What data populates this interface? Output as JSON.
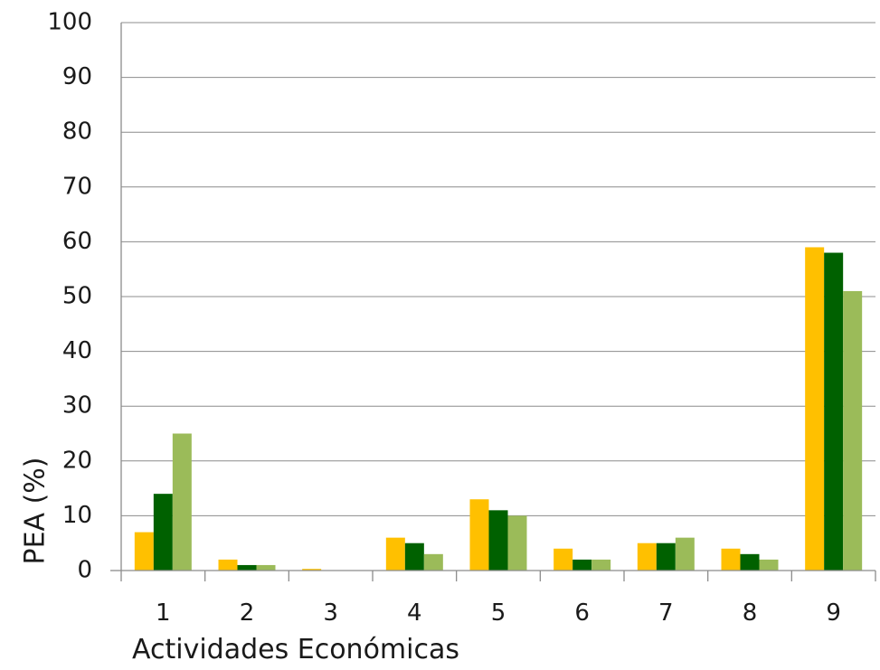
{
  "chart_data": {
    "type": "bar",
    "title": "",
    "xlabel": "Actividades Económicas",
    "ylabel": "PEA (%)",
    "ylim": [
      0,
      100
    ],
    "yticks": [
      0,
      10,
      20,
      30,
      40,
      50,
      60,
      70,
      80,
      90,
      100
    ],
    "grid": true,
    "legend": "none",
    "categories": [
      "1",
      "2",
      "3",
      "4",
      "5",
      "6",
      "7",
      "8",
      "9"
    ],
    "series": [
      {
        "color": "#FFC000",
        "values": [
          7,
          2,
          0.3,
          6,
          13,
          4,
          5,
          4,
          59
        ]
      },
      {
        "color": "#006100",
        "values": [
          14,
          1,
          0,
          5,
          11,
          2,
          5,
          3,
          58
        ]
      },
      {
        "color": "#9BBB59",
        "values": [
          25,
          1,
          0,
          3,
          10,
          2,
          6,
          2,
          51
        ]
      }
    ]
  }
}
